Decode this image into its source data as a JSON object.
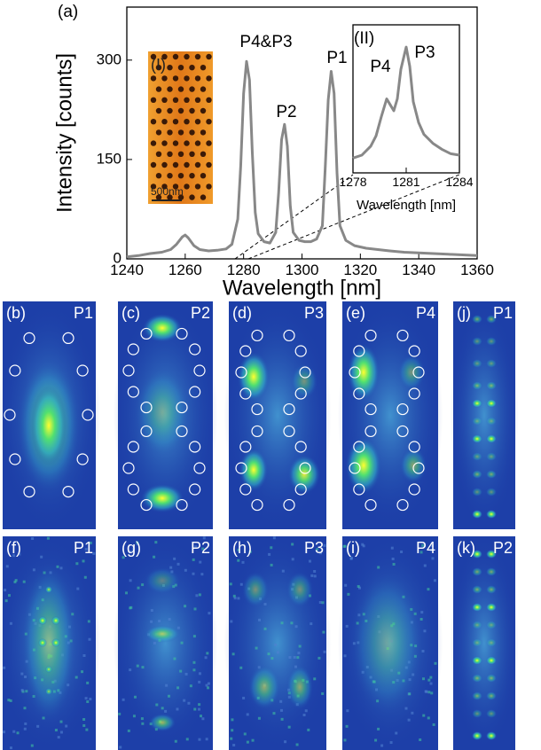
{
  "chart_data": [
    {
      "type": "line",
      "panel_label": "(a)",
      "xlabel": "Wavelength [nm]",
      "ylabel": "Intensity [counts]",
      "annotations": [
        "P4&P3",
        "P2",
        "P1"
      ],
      "color": "#888888",
      "x": [
        1240,
        1244,
        1248,
        1252,
        1255,
        1257,
        1259,
        1260,
        1261,
        1263,
        1265,
        1268,
        1271,
        1274,
        1276,
        1278,
        1279,
        1280,
        1281,
        1282,
        1283,
        1284,
        1285,
        1287,
        1289,
        1291,
        1292,
        1293,
        1294,
        1295,
        1296,
        1297,
        1299,
        1301,
        1303,
        1305,
        1307,
        1308,
        1309,
        1310,
        1311,
        1312,
        1313,
        1315,
        1318,
        1322,
        1326,
        1330,
        1335,
        1340,
        1345,
        1350,
        1355,
        1360
      ],
      "values": [
        3,
        5,
        8,
        10,
        14,
        22,
        33,
        36,
        32,
        20,
        14,
        12,
        13,
        15,
        22,
        60,
        140,
        250,
        298,
        270,
        160,
        70,
        38,
        26,
        24,
        40,
        100,
        180,
        203,
        170,
        80,
        40,
        28,
        26,
        26,
        30,
        50,
        140,
        240,
        283,
        250,
        130,
        50,
        28,
        20,
        16,
        14,
        12,
        10,
        9,
        8,
        7,
        6,
        5
      ],
      "xlim": [
        1240,
        1360
      ],
      "ylim": [
        0,
        380
      ],
      "xticks": [
        1240,
        1260,
        1280,
        1300,
        1320,
        1340,
        1360
      ],
      "yticks": [
        0,
        150,
        300
      ]
    },
    {
      "type": "line",
      "panel_label": "(II)",
      "xlabel": "Wavelength [nm]",
      "annotations": [
        "P4",
        "P3"
      ],
      "color": "#888888",
      "x": [
        1278,
        1278.5,
        1279,
        1279.3,
        1279.6,
        1279.9,
        1280.1,
        1280.3,
        1280.5,
        1280.7,
        1280.9,
        1281,
        1281.2,
        1281.4,
        1281.7,
        1282,
        1282.5,
        1283,
        1283.5,
        1284
      ],
      "values": [
        10,
        12,
        18,
        25,
        38,
        50,
        46,
        42,
        50,
        70,
        80,
        85,
        72,
        48,
        34,
        26,
        20,
        16,
        13,
        12
      ],
      "xlim": [
        1278,
        1284
      ],
      "ylim": [
        0,
        100
      ],
      "xticks": [
        1278,
        1281,
        1284
      ]
    }
  ],
  "sem_inset": {
    "label": "(I)",
    "scale_bar": "500nm"
  },
  "panels": [
    {
      "label": "(b)",
      "peak": "P1"
    },
    {
      "label": "(c)",
      "peak": "P2"
    },
    {
      "label": "(d)",
      "peak": "P3"
    },
    {
      "label": "(e)",
      "peak": "P4"
    },
    {
      "label": "(j)",
      "peak": "P1"
    },
    {
      "label": "(f)",
      "peak": "P1"
    },
    {
      "label": "(g)",
      "peak": "P2"
    },
    {
      "label": "(h)",
      "peak": "P3"
    },
    {
      "label": "(i)",
      "peak": "P4"
    },
    {
      "label": "(k)",
      "peak": "P2"
    }
  ]
}
